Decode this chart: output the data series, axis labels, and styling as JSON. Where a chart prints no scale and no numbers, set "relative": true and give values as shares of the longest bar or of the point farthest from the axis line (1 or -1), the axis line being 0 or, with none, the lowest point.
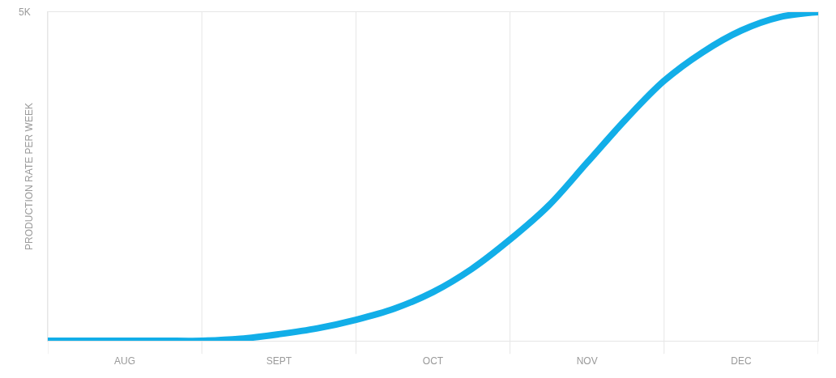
{
  "chart_data": {
    "type": "line",
    "relative": true,
    "ylabel": "PRODUCTION RATE PER WEEK",
    "annotations": [
      "5K"
    ],
    "categories": [
      null,
      null,
      "AUG",
      null,
      null,
      null,
      "SEPT",
      null,
      null,
      null,
      "OCT",
      null,
      null,
      null,
      "NOV",
      null,
      null,
      null,
      "DEC",
      null,
      null
    ],
    "series": [
      {
        "color": "#12aee8",
        "values": [
          0,
          0,
          0,
          0,
          0,
          0.006,
          0.02,
          0.038,
          0.064,
          0.098,
          0.148,
          0.218,
          0.308,
          0.411,
          0.542,
          0.673,
          0.791,
          0.878,
          0.944,
          0.985,
          1.0
        ]
      }
    ],
    "grid": "x",
    "marker": "none",
    "line_style": "solid"
  }
}
